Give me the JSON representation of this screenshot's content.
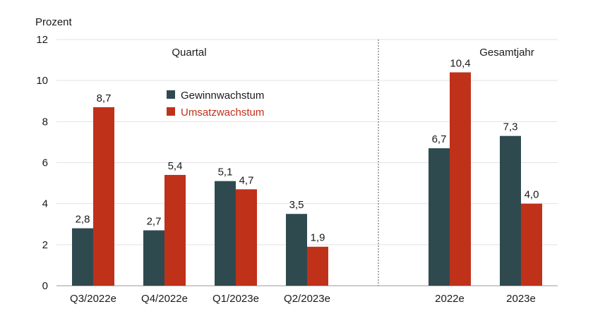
{
  "chart_data": {
    "type": "bar",
    "ylabel": "Prozent",
    "ylim": [
      0,
      12
    ],
    "yticks": [
      "0",
      "2",
      "4",
      "6",
      "8",
      "10",
      "12"
    ],
    "grid": true,
    "legend_position": "top-left",
    "sections": [
      {
        "label": "Quartal",
        "categories": [
          "Q3/2022e",
          "Q4/2022e",
          "Q1/2023e",
          "Q2/2023e"
        ]
      },
      {
        "label": "Gesamtjahr",
        "categories": [
          "2022e",
          "2023e"
        ]
      }
    ],
    "categories": [
      "Q3/2022e",
      "Q4/2022e",
      "Q1/2023e",
      "Q2/2023e",
      "2022e",
      "2023e"
    ],
    "series": [
      {
        "name": "Gewinnwachstum",
        "color": "#2f4a4f",
        "values": [
          2.8,
          2.7,
          5.1,
          3.5,
          6.7,
          7.3
        ],
        "labels": [
          "2,8",
          "2,7",
          "5,1",
          "3,5",
          "6,7",
          "7,3"
        ]
      },
      {
        "name": "Umsatzwachstum",
        "color": "#c0311a",
        "values": [
          8.7,
          5.4,
          4.7,
          1.9,
          10.4,
          4.0
        ],
        "labels": [
          "8,7",
          "5,4",
          "4,7",
          "1,9",
          "10,4",
          "4,0"
        ]
      }
    ]
  }
}
